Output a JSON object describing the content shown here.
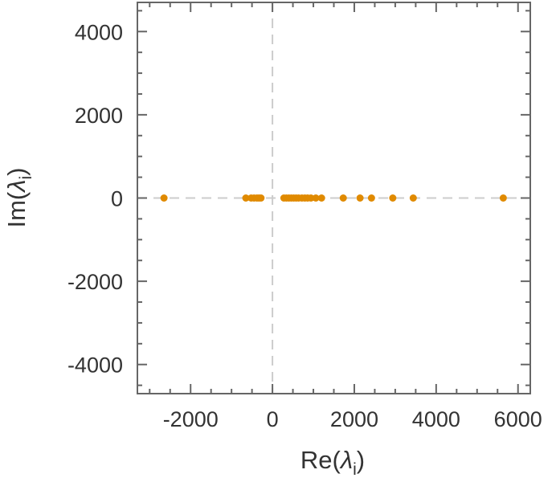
{
  "chart_data": {
    "type": "scatter",
    "title": "",
    "xlabel": {
      "main": "Re(",
      "symbol": "λ",
      "sub": "i",
      "close": ")"
    },
    "ylabel": {
      "main": "Im(",
      "symbol": "λ",
      "sub": "i",
      "close": ")"
    },
    "xlim": [
      -3300,
      6300
    ],
    "ylim": [
      -4700,
      4700
    ],
    "xticks": [
      -2000,
      0,
      2000,
      4000,
      6000
    ],
    "yticks": [
      4000,
      2000,
      0,
      -2000,
      -4000
    ],
    "xtick_labels": [
      "-2000",
      "0",
      "2000",
      "4000",
      "6000"
    ],
    "ytick_labels": [
      "4000",
      "2000",
      "0",
      "-2000",
      "-4000"
    ],
    "x_minor_step": 500,
    "y_minor_step": 500,
    "reference_lines": {
      "x": 0,
      "y": 0,
      "style": "dashed",
      "color": "#cccccc"
    },
    "marker_color": "#e08a00",
    "grid": false,
    "points": [
      {
        "x": -2650,
        "y": 0
      },
      {
        "x": -650,
        "y": 0
      },
      {
        "x": -520,
        "y": 0
      },
      {
        "x": -450,
        "y": 0
      },
      {
        "x": -380,
        "y": 0
      },
      {
        "x": -330,
        "y": 0
      },
      {
        "x": -280,
        "y": 0
      },
      {
        "x": 280,
        "y": 0
      },
      {
        "x": 340,
        "y": 0
      },
      {
        "x": 400,
        "y": 0
      },
      {
        "x": 460,
        "y": 0
      },
      {
        "x": 520,
        "y": 0
      },
      {
        "x": 580,
        "y": 0
      },
      {
        "x": 640,
        "y": 0
      },
      {
        "x": 720,
        "y": 0
      },
      {
        "x": 790,
        "y": 0
      },
      {
        "x": 860,
        "y": 0
      },
      {
        "x": 940,
        "y": 0
      },
      {
        "x": 1060,
        "y": 0
      },
      {
        "x": 1200,
        "y": 0
      },
      {
        "x": 1730,
        "y": 0
      },
      {
        "x": 2140,
        "y": 0
      },
      {
        "x": 2420,
        "y": 0
      },
      {
        "x": 2940,
        "y": 0
      },
      {
        "x": 3440,
        "y": 0
      },
      {
        "x": 5640,
        "y": 0
      }
    ]
  }
}
